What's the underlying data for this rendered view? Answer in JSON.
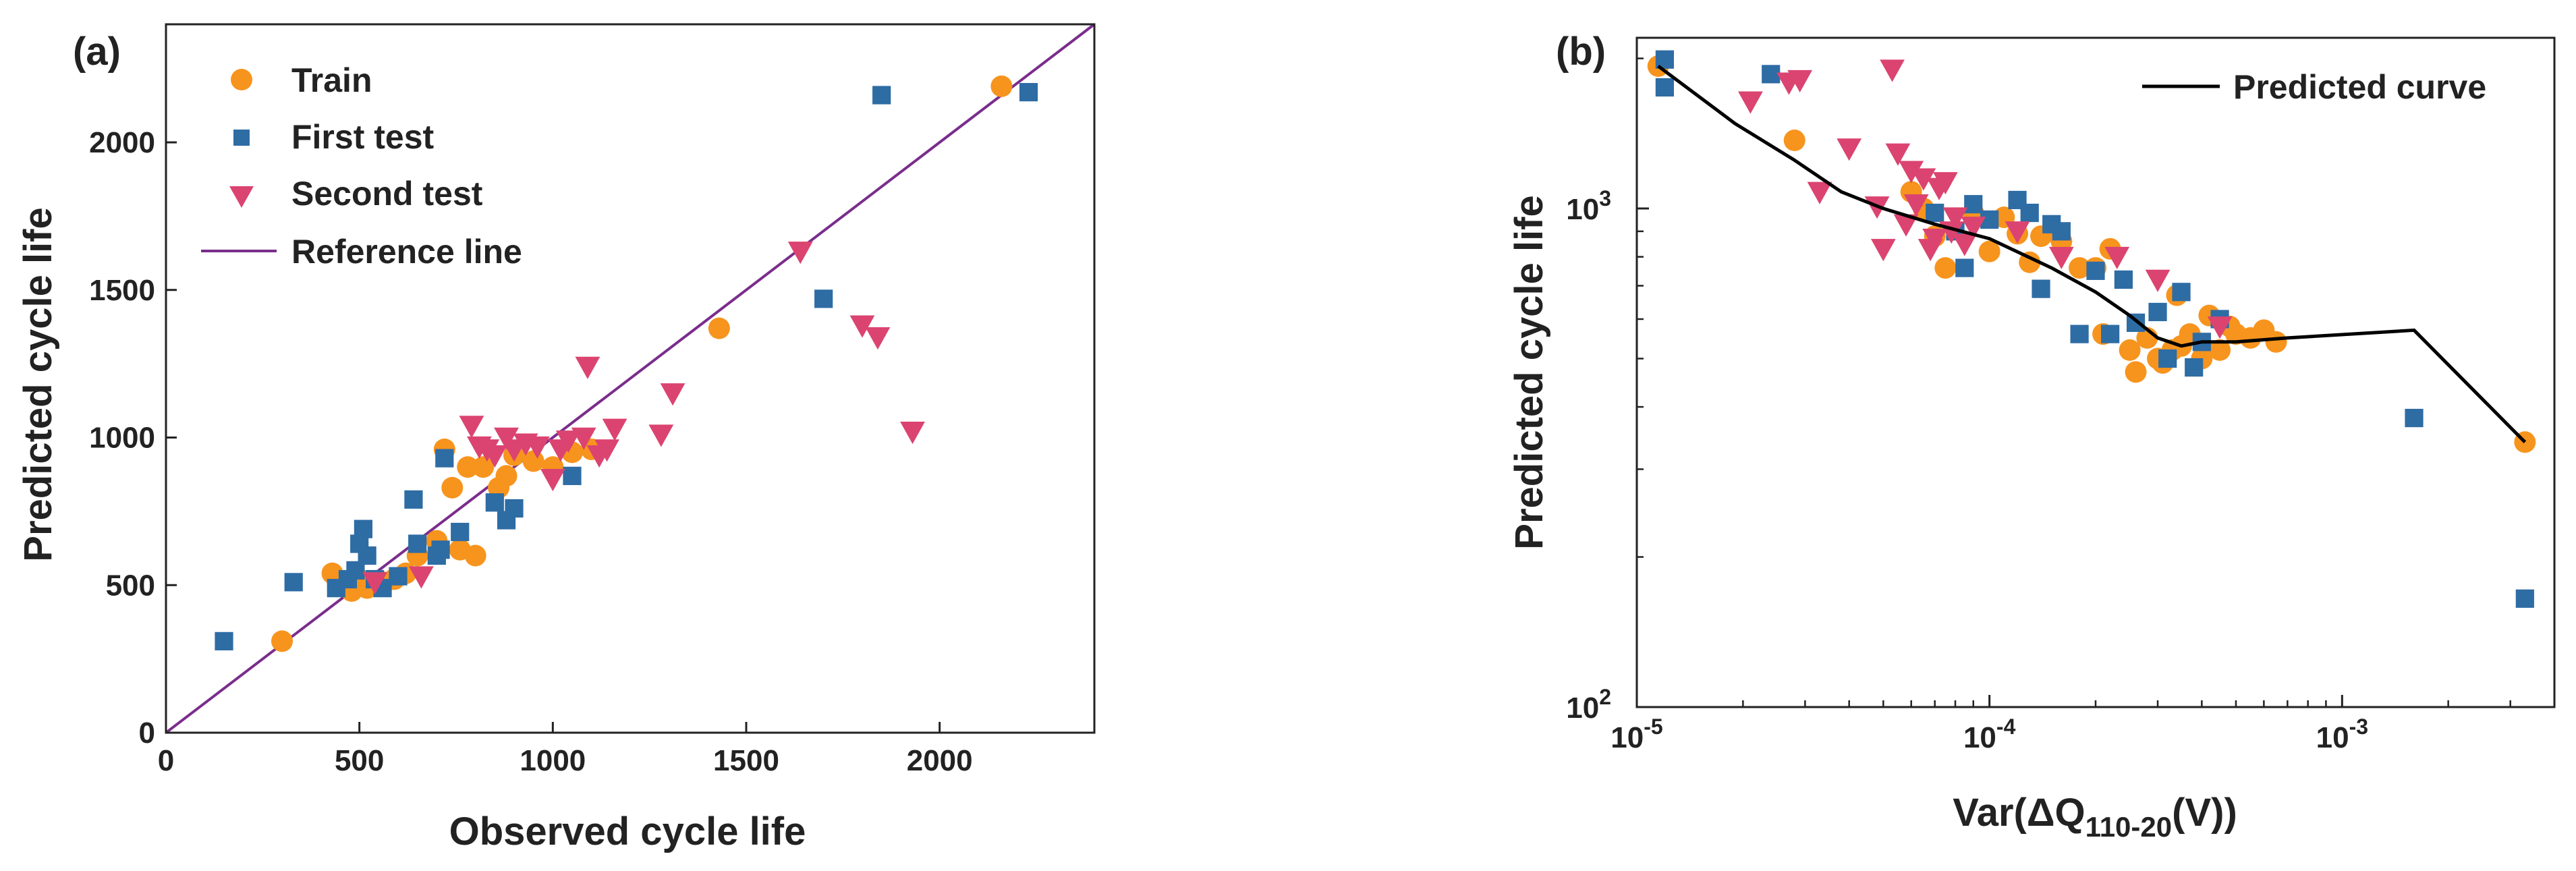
{
  "colors": {
    "train": "#F7941D",
    "first_test": "#2E6CA4",
    "second_test": "#DB4470",
    "reference": "#7A2D8C",
    "predicted": "#000000"
  },
  "chart_data": [
    {
      "type": "scatter",
      "panel_label": "(a)",
      "title": "",
      "xlabel": "Observed cycle life",
      "ylabel": "Predicted cycle life",
      "xlim": [
        0,
        2400
      ],
      "ylim": [
        0,
        2400
      ],
      "xticks": [
        0,
        500,
        1000,
        1500,
        2000
      ],
      "yticks": [
        0,
        500,
        1000,
        1500,
        2000
      ],
      "legend": [
        "Train",
        "First test",
        "Second test",
        "Reference line"
      ],
      "legend_position": "top-left",
      "reference_line": {
        "name": "Reference line",
        "x": [
          0,
          2400
        ],
        "y": [
          0,
          2400
        ]
      },
      "series": [
        {
          "name": "Train",
          "marker": "circle",
          "points": [
            [
              300,
              310
            ],
            [
              430,
              540
            ],
            [
              460,
              500
            ],
            [
              480,
              480
            ],
            [
              500,
              520
            ],
            [
              520,
              490
            ],
            [
              540,
              500
            ],
            [
              560,
              510
            ],
            [
              590,
              520
            ],
            [
              620,
              540
            ],
            [
              650,
              600
            ],
            [
              700,
              650
            ],
            [
              720,
              960
            ],
            [
              740,
              830
            ],
            [
              760,
              620
            ],
            [
              780,
              900
            ],
            [
              800,
              600
            ],
            [
              820,
              900
            ],
            [
              860,
              830
            ],
            [
              880,
              870
            ],
            [
              900,
              940
            ],
            [
              950,
              920
            ],
            [
              1000,
              900
            ],
            [
              1050,
              950
            ],
            [
              1100,
              960
            ],
            [
              1430,
              1370
            ],
            [
              2160,
              2190
            ]
          ]
        },
        {
          "name": "First test",
          "marker": "square",
          "points": [
            [
              150,
              310
            ],
            [
              330,
              510
            ],
            [
              440,
              490
            ],
            [
              470,
              520
            ],
            [
              490,
              550
            ],
            [
              500,
              640
            ],
            [
              510,
              690
            ],
            [
              520,
              600
            ],
            [
              540,
              520
            ],
            [
              560,
              490
            ],
            [
              600,
              530
            ],
            [
              640,
              790
            ],
            [
              650,
              640
            ],
            [
              700,
              600
            ],
            [
              710,
              620
            ],
            [
              720,
              930
            ],
            [
              760,
              680
            ],
            [
              850,
              780
            ],
            [
              880,
              720
            ],
            [
              900,
              760
            ],
            [
              1050,
              870
            ],
            [
              1700,
              1470
            ],
            [
              1850,
              2160
            ],
            [
              2230,
              2170
            ]
          ]
        },
        {
          "name": "Second test",
          "marker": "triangle-down",
          "points": [
            [
              540,
              510
            ],
            [
              660,
              530
            ],
            [
              790,
              1040
            ],
            [
              810,
              970
            ],
            [
              830,
              960
            ],
            [
              850,
              940
            ],
            [
              880,
              1000
            ],
            [
              900,
              960
            ],
            [
              930,
              980
            ],
            [
              960,
              970
            ],
            [
              1000,
              860
            ],
            [
              1020,
              960
            ],
            [
              1040,
              990
            ],
            [
              1080,
              1000
            ],
            [
              1090,
              1240
            ],
            [
              1120,
              940
            ],
            [
              1140,
              960
            ],
            [
              1160,
              1030
            ],
            [
              1280,
              1010
            ],
            [
              1310,
              1150
            ],
            [
              1640,
              1630
            ],
            [
              1800,
              1380
            ],
            [
              1840,
              1340
            ],
            [
              1930,
              1020
            ]
          ]
        }
      ]
    },
    {
      "type": "scatter",
      "panel_label": "(b)",
      "title": "",
      "xlabel": "Var(ΔQ110-20(V))",
      "xlabel_main": "Var(ΔQ",
      "xlabel_sub": "110-20",
      "xlabel_end": "(V))",
      "ylabel": "Predicted cycle life",
      "xscale": "log",
      "yscale": "log",
      "xlim": [
        1e-05,
        0.004
      ],
      "ylim": [
        100,
        2200
      ],
      "xticks": [
        1e-05,
        0.0001,
        0.001
      ],
      "xtick_labels": [
        [
          "10",
          "-5"
        ],
        [
          "10",
          "-4"
        ],
        [
          "10",
          "-3"
        ]
      ],
      "yticks": [
        100,
        1000
      ],
      "ytick_labels": [
        [
          "10",
          "2"
        ],
        [
          "10",
          "3"
        ]
      ],
      "legend": [
        "Predicted curve"
      ],
      "legend_position": "top-right",
      "predicted_curve": {
        "name": "Predicted curve",
        "x": [
          1.15e-05,
          1.9e-05,
          2.8e-05,
          3.8e-05,
          5e-05,
          7e-05,
          0.0001,
          0.00015,
          0.0002,
          0.00025,
          0.0003,
          0.00035,
          0.0004,
          0.0005,
          0.0007,
          0.0016,
          0.0033
        ],
        "y": [
          1930,
          1480,
          1250,
          1080,
          1000,
          930,
          870,
          760,
          680,
          610,
          550,
          530,
          540,
          540,
          550,
          570,
          340
        ]
      },
      "series": [
        {
          "name": "Train",
          "marker": "circle",
          "points": [
            [
              1.15e-05,
              1930
            ],
            [
              2.8e-05,
              1370
            ],
            [
              6e-05,
              1080
            ],
            [
              6.5e-05,
              1000
            ],
            [
              7e-05,
              880
            ],
            [
              7.5e-05,
              760
            ],
            [
              9e-05,
              980
            ],
            [
              0.0001,
              820
            ],
            [
              0.00011,
              960
            ],
            [
              0.00012,
              890
            ],
            [
              0.00013,
              780
            ],
            [
              0.00014,
              880
            ],
            [
              0.00015,
              900
            ],
            [
              0.00016,
              860
            ],
            [
              0.00018,
              760
            ],
            [
              0.0002,
              760
            ],
            [
              0.00021,
              560
            ],
            [
              0.00022,
              830
            ],
            [
              0.00025,
              520
            ],
            [
              0.00026,
              470
            ],
            [
              0.00028,
              550
            ],
            [
              0.0003,
              500
            ],
            [
              0.00031,
              490
            ],
            [
              0.00033,
              520
            ],
            [
              0.00034,
              670
            ],
            [
              0.00035,
              530
            ],
            [
              0.00037,
              560
            ],
            [
              0.0004,
              500
            ],
            [
              0.00042,
              610
            ],
            [
              0.00045,
              520
            ],
            [
              0.00048,
              580
            ],
            [
              0.0005,
              560
            ],
            [
              0.00055,
              550
            ],
            [
              0.0006,
              570
            ],
            [
              0.00065,
              540
            ],
            [
              0.0033,
              340
            ]
          ]
        },
        {
          "name": "First test",
          "marker": "square",
          "points": [
            [
              1.2e-05,
              1990
            ],
            [
              1.2e-05,
              1750
            ],
            [
              2.4e-05,
              1860
            ],
            [
              7e-05,
              980
            ],
            [
              8e-05,
              900
            ],
            [
              8.5e-05,
              760
            ],
            [
              9e-05,
              1020
            ],
            [
              0.0001,
              950
            ],
            [
              0.00012,
              1040
            ],
            [
              0.00013,
              980
            ],
            [
              0.00014,
              690
            ],
            [
              0.00015,
              930
            ],
            [
              0.00016,
              900
            ],
            [
              0.00018,
              560
            ],
            [
              0.0002,
              750
            ],
            [
              0.00022,
              560
            ],
            [
              0.00024,
              720
            ],
            [
              0.00026,
              590
            ],
            [
              0.0003,
              620
            ],
            [
              0.00032,
              500
            ],
            [
              0.00035,
              680
            ],
            [
              0.00038,
              480
            ],
            [
              0.0004,
              540
            ],
            [
              0.00045,
              600
            ],
            [
              0.0016,
              380
            ],
            [
              0.0033,
              165
            ]
          ]
        },
        {
          "name": "Second test",
          "marker": "triangle-down",
          "points": [
            [
              2.1e-05,
              1640
            ],
            [
              2.7e-05,
              1790
            ],
            [
              2.9e-05,
              1810
            ],
            [
              3.3e-05,
              1080
            ],
            [
              4e-05,
              1320
            ],
            [
              4.8e-05,
              1010
            ],
            [
              5e-05,
              830
            ],
            [
              5.3e-05,
              1900
            ],
            [
              5.5e-05,
              1290
            ],
            [
              5.8e-05,
              930
            ],
            [
              6e-05,
              1190
            ],
            [
              6.2e-05,
              1020
            ],
            [
              6.5e-05,
              1150
            ],
            [
              6.8e-05,
              830
            ],
            [
              7e-05,
              870
            ],
            [
              7.2e-05,
              1100
            ],
            [
              7.5e-05,
              1130
            ],
            [
              7.8e-05,
              900
            ],
            [
              8e-05,
              960
            ],
            [
              8.5e-05,
              850
            ],
            [
              9e-05,
              920
            ],
            [
              0.00012,
              900
            ],
            [
              0.00016,
              800
            ],
            [
              0.00023,
              800
            ],
            [
              0.0003,
              720
            ],
            [
              0.00045,
              580
            ]
          ]
        }
      ]
    }
  ]
}
